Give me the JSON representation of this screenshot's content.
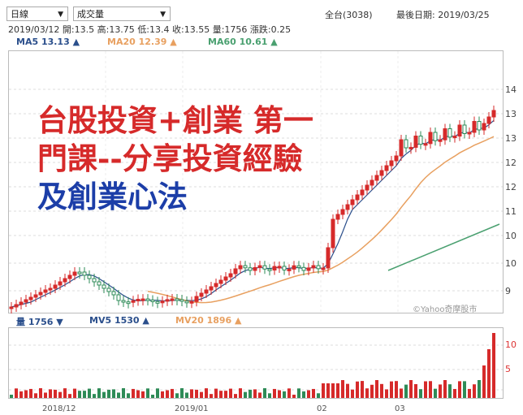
{
  "toolbar": {
    "period_select": "日線",
    "indicator_select": "成交量",
    "stock_info": "全台(3038)",
    "date_label": "最後日期: 2019/03/25"
  },
  "quote": {
    "date": "2019/03/12",
    "open_label": "開:13.5",
    "high_label": "高:13.75",
    "low_label": "低:13.4",
    "close_label": "收:13.55",
    "volume_label": "量:1756",
    "change_label": "漲跌:0.25"
  },
  "ma_legend": {
    "ma5": "MA5 13.13 ▲",
    "ma20": "MA20 12.39 ▲",
    "ma60": "MA60 10.61 ▲",
    "ma5_color": "#2b4f8c",
    "ma20_color": "#e8a060",
    "ma60_color": "#4aa070"
  },
  "volume_legend": {
    "vol": "量 1756 ▼",
    "mv5": "MV5 1530 ▲",
    "mv20": "MV20 1896 ▲"
  },
  "overlay": {
    "line1": "台股投資+創業 第一",
    "line2": "門課--分享投資經驗",
    "line3": "及創業心法",
    "red": "#d62a2a",
    "blue": "#1c3ea8"
  },
  "y_ticks": [
    "14",
    "13",
    "13",
    "12",
    "12",
    "11",
    "10",
    "10",
    "9"
  ],
  "vol_ticks": [
    "10",
    "5"
  ],
  "x_ticks": [
    "2018/12",
    "2019/01",
    "02",
    "03"
  ],
  "watermark": "©Yahoo奇摩股市"
}
